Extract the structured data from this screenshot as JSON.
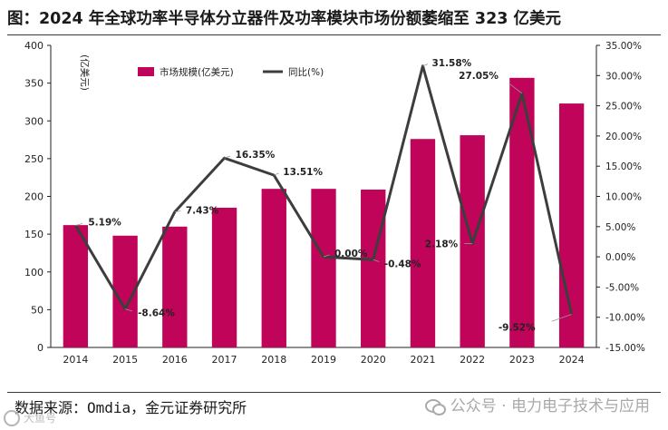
{
  "title": "图：2024 年全球功率半导体分立器件及功率模块市场份额萎缩至 323 亿美元",
  "source": "数据来源：Omdia，金元证券研究所",
  "watermark": "公众号 · 电力电子技术与应用",
  "logo_text": "大鱼号",
  "colors": {
    "bar": "#c0045a",
    "line": "#3d3d3d"
  },
  "chart_data": {
    "type": "bar",
    "title": "",
    "xlabel": "",
    "ylabel": "(亿美元)",
    "categories": [
      "2014",
      "2015",
      "2016",
      "2017",
      "2018",
      "2019",
      "2020",
      "2021",
      "2022",
      "2023",
      "2024"
    ],
    "ylim": [
      0,
      400
    ],
    "y_ticks": [
      "0",
      "50",
      "100",
      "150",
      "200",
      "250",
      "300",
      "350",
      "400"
    ],
    "y2lim": [
      -15,
      35
    ],
    "y2_ticks": [
      "-15.00%",
      "-10.00%",
      "-5.00%",
      "0.00%",
      "5.00%",
      "10.00%",
      "15.00%",
      "20.00%",
      "25.00%",
      "30.00%",
      "35.00%"
    ],
    "legend_position": "top-left",
    "series": [
      {
        "name": "市场规模(亿美元)",
        "type": "bar",
        "axis": "left",
        "values": [
          162,
          148,
          160,
          185,
          210,
          210,
          209,
          276,
          281,
          357,
          323
        ]
      },
      {
        "name": "同比(%)",
        "type": "line",
        "axis": "right",
        "values": [
          5.19,
          -8.64,
          7.43,
          16.35,
          13.51,
          0.0,
          -0.48,
          31.58,
          2.18,
          27.05,
          -9.52
        ],
        "labels": [
          "5.19%",
          "-8.64%",
          "7.43%",
          "16.35%",
          "13.51%",
          "0.00%",
          "-0.48%",
          "31.58%",
          "2.18%",
          "27.05%",
          "-9.52%"
        ]
      }
    ]
  }
}
